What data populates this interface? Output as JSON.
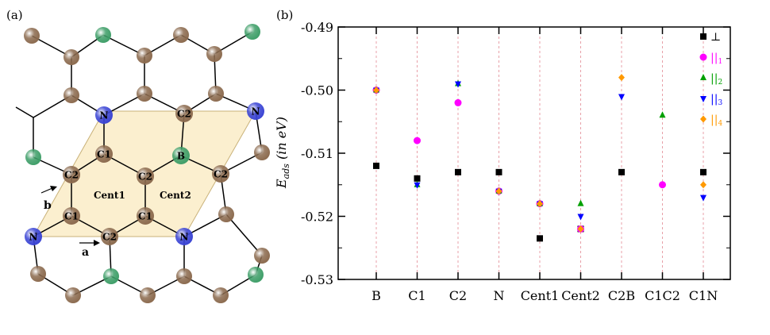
{
  "panel_a": {
    "label": "(a)",
    "atoms": [
      {
        "label": "N",
        "element": "N"
      },
      {
        "label": "C2",
        "element": "C"
      },
      {
        "label": "N",
        "element": "N"
      },
      {
        "label": "C1",
        "element": "C"
      },
      {
        "label": "B",
        "element": "B"
      },
      {
        "label": "C2",
        "element": "C"
      },
      {
        "label": "C2",
        "element": "C"
      },
      {
        "label": "C2",
        "element": "C"
      },
      {
        "label": "C1",
        "element": "C"
      },
      {
        "label": "C1",
        "element": "C"
      },
      {
        "label": "N",
        "element": "N"
      },
      {
        "label": "C2",
        "element": "C"
      },
      {
        "label": "N",
        "element": "N"
      }
    ],
    "site_labels": [
      "Cent1",
      "Cent2"
    ],
    "vector_a": "a",
    "vector_b": "b",
    "colors": {
      "C": "#8b6a4e",
      "B": "#3e9e68",
      "N": "#3a44d4",
      "cell": "#fbefcf"
    }
  },
  "chart_data": {
    "type": "scatter",
    "panel_label": "(b)",
    "ylabel_main": "E",
    "ylabel_sub": "ads",
    "ylabel_rest": " (in eV)",
    "categories": [
      "B",
      "C1",
      "C2",
      "N",
      "Cent1",
      "Cent2",
      "C2B",
      "C1C2",
      "C1N"
    ],
    "ylim": [
      -0.53,
      -0.49
    ],
    "yticks": [
      "-0.53",
      "-0.52",
      "-0.51",
      "-0.50",
      "-0.49"
    ],
    "ytick_values": [
      -0.53,
      -0.52,
      -0.51,
      -0.5,
      -0.49
    ],
    "grid": "vertical dashed per category",
    "legend_position": "top-right",
    "series": [
      {
        "name": "⊥",
        "color": "#000000",
        "marker": "square",
        "values": [
          -0.512,
          -0.514,
          -0.513,
          -0.513,
          -0.5235,
          -0.522,
          -0.513,
          null,
          -0.513
        ]
      },
      {
        "name": "||",
        "sub": "1",
        "color": "#ff00ff",
        "marker": "circle",
        "values": [
          -0.5,
          -0.508,
          -0.502,
          -0.516,
          -0.518,
          -0.522,
          null,
          -0.515,
          null
        ]
      },
      {
        "name": "||",
        "sub": "2",
        "color": "#00a000",
        "marker": "triangle-up",
        "values": [
          -0.5,
          -0.515,
          -0.499,
          -0.516,
          -0.518,
          -0.518,
          null,
          -0.504,
          null
        ]
      },
      {
        "name": "||",
        "sub": "3",
        "color": "#0000ff",
        "marker": "triangle-down",
        "values": [
          -0.5,
          -0.515,
          -0.499,
          -0.516,
          -0.518,
          -0.52,
          -0.501,
          null,
          -0.517
        ]
      },
      {
        "name": "||",
        "sub": "4",
        "color": "#ff9900",
        "marker": "diamond",
        "values": [
          -0.5,
          null,
          null,
          -0.516,
          -0.518,
          -0.522,
          -0.498,
          null,
          -0.515
        ]
      }
    ]
  }
}
